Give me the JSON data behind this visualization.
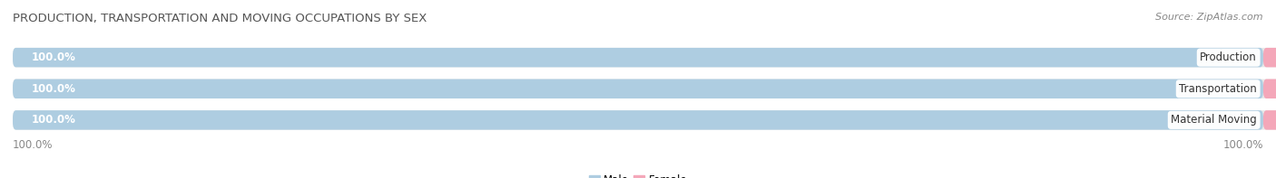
{
  "title": "PRODUCTION, TRANSPORTATION AND MOVING OCCUPATIONS BY SEX",
  "source": "Source: ZipAtlas.com",
  "categories": [
    "Production",
    "Transportation",
    "Material Moving"
  ],
  "male_values": [
    100.0,
    100.0,
    100.0
  ],
  "female_values": [
    0.0,
    0.0,
    0.0
  ],
  "male_color": "#aecde1",
  "female_color": "#f4a7b9",
  "bar_bg_color": "#e8e8e8",
  "background_color": "#ffffff",
  "axis_left": "100.0%",
  "axis_right": "100.0%",
  "title_fontsize": 9.5,
  "source_fontsize": 8,
  "bar_label_fontsize": 8.5,
  "category_fontsize": 8.5,
  "legend_fontsize": 8.5,
  "value_label_color": "#888888",
  "male_label_color": "#ffffff",
  "category_label_color": "#333333"
}
